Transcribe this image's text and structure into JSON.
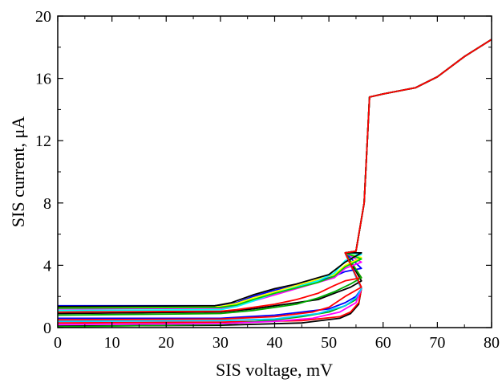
{
  "chart_data": {
    "type": "line",
    "title": "",
    "xlabel": "SIS voltage, mV",
    "ylabel": "SIS current, μA",
    "xlim": [
      0,
      80
    ],
    "ylim": [
      0,
      20
    ],
    "x_ticks": [
      0,
      10,
      20,
      30,
      40,
      50,
      60,
      70,
      80
    ],
    "y_ticks": [
      0,
      4,
      8,
      12,
      16,
      20
    ],
    "grid": false,
    "legend": "none",
    "shared_tail": [
      [
        53,
        4.8
      ],
      [
        55,
        4.9
      ],
      [
        56.5,
        8.0
      ],
      [
        57.5,
        14.8
      ],
      [
        60,
        15.0
      ],
      [
        66,
        15.4
      ],
      [
        70,
        16.1
      ],
      [
        75,
        17.4
      ],
      [
        80,
        18.5
      ]
    ],
    "series": [
      {
        "color": "#000000",
        "points": [
          [
            0,
            0.1
          ],
          [
            30,
            0.15
          ],
          [
            45,
            0.3
          ],
          [
            52,
            0.6
          ],
          [
            54,
            0.9
          ],
          [
            55.5,
            1.5
          ],
          [
            56,
            2.5
          ]
        ]
      },
      {
        "color": "#ff0000",
        "points": [
          [
            0,
            0.3
          ],
          [
            30,
            0.35
          ],
          [
            45,
            0.45
          ],
          [
            52,
            0.7
          ],
          [
            54,
            1.0
          ],
          [
            55.5,
            1.6
          ],
          [
            56,
            2.5
          ]
        ]
      },
      {
        "color": "#0000ff",
        "points": [
          [
            0,
            0.6
          ],
          [
            30,
            0.6
          ],
          [
            35,
            0.7
          ],
          [
            40,
            0.8
          ],
          [
            45,
            1.0
          ],
          [
            50,
            1.2
          ],
          [
            53,
            1.6
          ],
          [
            55,
            2.0
          ],
          [
            56,
            2.5
          ]
        ]
      },
      {
        "color": "#00aa00",
        "points": [
          [
            0,
            0.05
          ],
          [
            20,
            0.15
          ],
          [
            30,
            0.2
          ],
          [
            40,
            0.5
          ],
          [
            45,
            0.7
          ],
          [
            50,
            1.0
          ],
          [
            53,
            1.4
          ],
          [
            55,
            1.8
          ],
          [
            56,
            2.5
          ]
        ]
      },
      {
        "color": "#ff00ff",
        "points": [
          [
            0,
            0.2
          ],
          [
            30,
            0.25
          ],
          [
            40,
            0.4
          ],
          [
            47,
            0.6
          ],
          [
            52,
            1.0
          ],
          [
            55,
            1.6
          ],
          [
            56,
            2.5
          ]
        ]
      },
      {
        "color": "#00ccff",
        "points": [
          [
            0,
            0.4
          ],
          [
            30,
            0.45
          ],
          [
            40,
            0.55
          ],
          [
            48,
            0.9
          ],
          [
            53,
            1.4
          ],
          [
            55,
            1.9
          ],
          [
            56,
            2.5
          ]
        ]
      },
      {
        "color": "#000000",
        "points": [
          [
            0,
            0.9
          ],
          [
            30,
            1.0
          ],
          [
            33,
            1.1
          ],
          [
            36,
            1.2
          ],
          [
            40,
            1.4
          ],
          [
            44,
            1.6
          ],
          [
            48,
            1.8
          ],
          [
            51,
            2.2
          ],
          [
            54,
            2.6
          ],
          [
            56,
            3.0
          ]
        ]
      },
      {
        "color": "#ff0000",
        "points": [
          [
            0,
            1.0
          ],
          [
            30,
            1.05
          ],
          [
            33,
            1.15
          ],
          [
            36,
            1.3
          ],
          [
            40,
            1.5
          ],
          [
            44,
            1.8
          ],
          [
            48,
            2.2
          ],
          [
            51,
            2.7
          ],
          [
            53,
            3.0
          ],
          [
            56,
            3.2
          ]
        ]
      },
      {
        "color": "#0000ff",
        "points": [
          [
            0,
            1.4
          ],
          [
            29,
            1.4
          ],
          [
            33,
            1.6
          ],
          [
            36,
            2.0
          ],
          [
            40,
            2.4
          ],
          [
            44,
            2.7
          ],
          [
            48,
            3.0
          ],
          [
            51,
            3.3
          ],
          [
            53,
            3.6
          ],
          [
            56,
            3.8
          ]
        ]
      },
      {
        "color": "#00aa00",
        "points": [
          [
            0,
            0.8
          ],
          [
            30,
            0.9
          ],
          [
            33,
            1.0
          ],
          [
            36,
            1.1
          ],
          [
            40,
            1.3
          ],
          [
            44,
            1.5
          ],
          [
            48,
            1.9
          ],
          [
            51,
            2.3
          ],
          [
            54,
            2.8
          ],
          [
            56,
            3.2
          ]
        ]
      },
      {
        "color": "#ff00ff",
        "points": [
          [
            0,
            1.2
          ],
          [
            30,
            1.25
          ],
          [
            33,
            1.4
          ],
          [
            36,
            1.7
          ],
          [
            40,
            2.1
          ],
          [
            44,
            2.5
          ],
          [
            48,
            2.9
          ],
          [
            51,
            3.2
          ],
          [
            53,
            3.8
          ],
          [
            56,
            4.2
          ]
        ]
      },
      {
        "color": "#ffff00",
        "points": [
          [
            0,
            1.3
          ],
          [
            30,
            1.35
          ],
          [
            33,
            1.55
          ],
          [
            36,
            1.9
          ],
          [
            40,
            2.3
          ],
          [
            44,
            2.7
          ],
          [
            48,
            3.1
          ],
          [
            51,
            3.4
          ],
          [
            53,
            4.0
          ],
          [
            56,
            4.5
          ]
        ]
      },
      {
        "color": "#00ffff",
        "points": [
          [
            0,
            1.1
          ],
          [
            30,
            1.15
          ],
          [
            33,
            1.35
          ],
          [
            36,
            1.7
          ],
          [
            40,
            2.2
          ],
          [
            44,
            2.6
          ],
          [
            48,
            3.0
          ],
          [
            51,
            3.5
          ],
          [
            53,
            4.3
          ],
          [
            56,
            4.7
          ]
        ]
      },
      {
        "color": "#00cc00",
        "points": [
          [
            0,
            1.25
          ],
          [
            30,
            1.3
          ],
          [
            33,
            1.45
          ],
          [
            36,
            1.8
          ],
          [
            40,
            2.2
          ],
          [
            44,
            2.55
          ],
          [
            48,
            2.9
          ],
          [
            51,
            3.3
          ],
          [
            53,
            3.9
          ],
          [
            56,
            4.4
          ]
        ]
      },
      {
        "color": "#000000",
        "points": [
          [
            0,
            1.35
          ],
          [
            29,
            1.4
          ],
          [
            32,
            1.6
          ],
          [
            36,
            2.1
          ],
          [
            40,
            2.5
          ],
          [
            44,
            2.8
          ],
          [
            48,
            3.2
          ],
          [
            50,
            3.4
          ],
          [
            53,
            4.2
          ],
          [
            56,
            4.8
          ]
        ]
      },
      {
        "color": "#ff0000",
        "points": [
          [
            0,
            0.5
          ],
          [
            30,
            0.55
          ],
          [
            40,
            0.7
          ],
          [
            47,
            1.0
          ],
          [
            50,
            1.3
          ],
          [
            53,
            2.0
          ],
          [
            56,
            2.6
          ]
        ]
      }
    ]
  }
}
